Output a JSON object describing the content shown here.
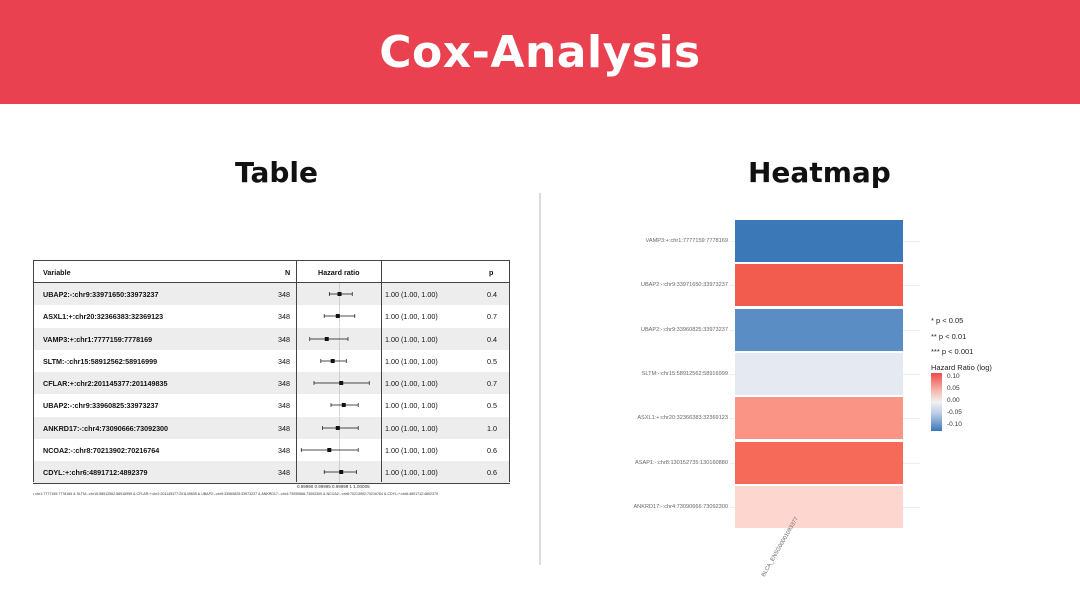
{
  "banner": {
    "title": "Cox-Analysis"
  },
  "table_section": {
    "title": "Table",
    "headers": {
      "variable": "Variable",
      "n": "N",
      "hazard_ratio": "Hazard ratio",
      "p": "p"
    },
    "rows": [
      {
        "variable": "UBAP2:-:chr9:33971650:33973237",
        "n": "348",
        "hr": "1.00 (1.00, 1.00)",
        "p": "0.4"
      },
      {
        "variable": "ASXL1:+:chr20:32366383:32369123",
        "n": "348",
        "hr": "1.00 (1.00, 1.00)",
        "p": "0.7"
      },
      {
        "variable": "VAMP3:+:chr1:7777159:7778169",
        "n": "348",
        "hr": "1.00 (1.00, 1.00)",
        "p": "0.4"
      },
      {
        "variable": "SLTM:-:chr15:58912562:58916999",
        "n": "348",
        "hr": "1.00 (1.00, 1.00)",
        "p": "0.5"
      },
      {
        "variable": "CFLAR:+:chr2:201145377:201149835",
        "n": "348",
        "hr": "1.00 (1.00, 1.00)",
        "p": "0.7"
      },
      {
        "variable": "UBAP2:-:chr9:33960825:33973237",
        "n": "348",
        "hr": "1.00 (1.00, 1.00)",
        "p": "0.5"
      },
      {
        "variable": "ANKRD17:-:chr4:73090666:73092300",
        "n": "348",
        "hr": "1.00 (1.00, 1.00)",
        "p": "1.0"
      },
      {
        "variable": "NCOA2:-:chr8:70213902:70216764",
        "n": "348",
        "hr": "1.00 (1.00, 1.00)",
        "p": "0.6"
      },
      {
        "variable": "CDYL:+:chr6:4891712:4892379",
        "n": "348",
        "hr": "1.00 (1.00, 1.00)",
        "p": "0.6"
      }
    ],
    "forest_points": [
      {
        "est": 0.5,
        "lo": 0.38,
        "hi": 0.65
      },
      {
        "est": 0.48,
        "lo": 0.32,
        "hi": 0.68
      },
      {
        "est": 0.35,
        "lo": 0.15,
        "hi": 0.6
      },
      {
        "est": 0.42,
        "lo": 0.28,
        "hi": 0.58
      },
      {
        "est": 0.52,
        "lo": 0.2,
        "hi": 0.85
      },
      {
        "est": 0.55,
        "lo": 0.4,
        "hi": 0.72
      },
      {
        "est": 0.48,
        "lo": 0.3,
        "hi": 0.72
      },
      {
        "est": 0.38,
        "lo": 0.05,
        "hi": 0.72
      },
      {
        "est": 0.52,
        "lo": 0.32,
        "hi": 0.7
      }
    ],
    "axis_ticks": "0.99990 0.99995 0.99999   1   1.00005",
    "footnote": "• chr1:7777159:7778169 & SLTM:-:chr15:58912562:58916999 & CFLAR:+:chr2:201145377:201149835 & UBAP2:-:chr9:33960825:33973237 & ANKRD17:-:chr4:73090666:73092300 & NCOA2:-:chr8:70213902:70216764 & CDYL:+:chr6:4891712:4892379"
  },
  "heatmap_section": {
    "title": "Heatmap",
    "rows": [
      {
        "label": "VAMP3:+:chr1:7777159:7778169",
        "value": -0.1,
        "color": "#3a78b8"
      },
      {
        "label": "UBAP2:-:chr9:33971650:33973237",
        "value": 0.09,
        "color": "#f25c4e"
      },
      {
        "label": "UBAP2:-:chr9:33960825:33973237",
        "value": -0.08,
        "color": "#5b8dc5"
      },
      {
        "label": "SLTM:-:chr15:58912562:58916999",
        "value": -0.01,
        "color": "#e5e9f2"
      },
      {
        "label": "ASXL1:+:chr20:32366383:32369123",
        "value": 0.06,
        "color": "#fa9585"
      },
      {
        "label": "ASAP1:-:chr8:130152735:130160880",
        "value": 0.08,
        "color": "#f56a58"
      },
      {
        "label": "ANKRD17:-:chr4:73090666:73092300",
        "value": 0.02,
        "color": "#fdd6d0"
      }
    ],
    "x_label": "BLCA_ENSG00001093377",
    "legend": {
      "sig1": "* p < 0.05",
      "sig2": "** p < 0.01",
      "sig3": "*** p < 0.001",
      "title": "Hazard Ratio (log)",
      "ticks": [
        "0.10",
        "0.05",
        "0.00",
        "-0.05",
        "-0.10"
      ]
    }
  }
}
